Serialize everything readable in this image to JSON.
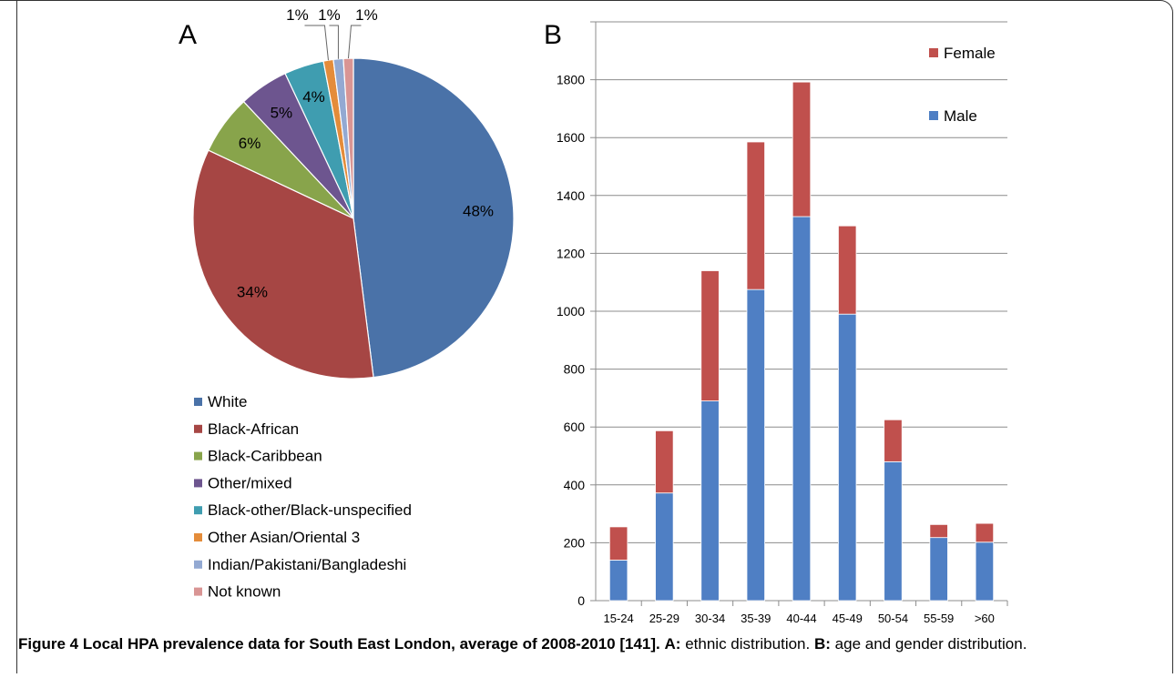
{
  "caption": {
    "lead": "Figure 4 Local HPA prevalence data for South East London, average of 2008-2010 [141].",
    "a_key": "A:",
    "a_text": "ethnic distribution.",
    "b_key": "B:",
    "b_text": "age and gender distribution."
  },
  "chart_data": [
    {
      "type": "pie",
      "panel_label": "A",
      "categories": [
        "White",
        "Black-African",
        "Black-Caribbean",
        "Other/mixed",
        "Black-other/Black-unspecified",
        "Other Asian/Oriental 3",
        "Indian/Pakistani/Bangladeshi",
        "Not known"
      ],
      "values": [
        48,
        34,
        6,
        5,
        4,
        1,
        1,
        1
      ],
      "data_labels": [
        "48%",
        "34%",
        "6%",
        "5%",
        "4%",
        "1%",
        "1%",
        "1%"
      ],
      "colors": [
        "#4a72a8",
        "#a64644",
        "#88a44b",
        "#6d558f",
        "#3f9db0",
        "#e48c3a",
        "#93a9d2",
        "#d99594"
      ],
      "legend_placement": "bottom"
    },
    {
      "type": "bar",
      "stacked": true,
      "panel_label": "B",
      "categories": [
        "15-24",
        "25-29",
        "30-34",
        "35-39",
        "40-44",
        "45-49",
        "50-54",
        "55-59",
        ">60"
      ],
      "series": [
        {
          "name": "Male",
          "color": "#4f7fc4",
          "values": [
            140,
            372,
            690,
            1075,
            1327,
            990,
            480,
            218,
            202
          ]
        },
        {
          "name": "Female",
          "color": "#c0504d",
          "values": [
            115,
            215,
            450,
            510,
            465,
            305,
            145,
            45,
            65
          ]
        }
      ],
      "ylim": [
        0,
        1800
      ],
      "yticks": [
        "0",
        "200",
        "400",
        "600",
        "800",
        "1000",
        "1200",
        "1400",
        "1600",
        "1800"
      ],
      "grid": true,
      "legend_order": [
        "Female",
        "Male"
      ],
      "legend_placement": "top-right"
    }
  ]
}
